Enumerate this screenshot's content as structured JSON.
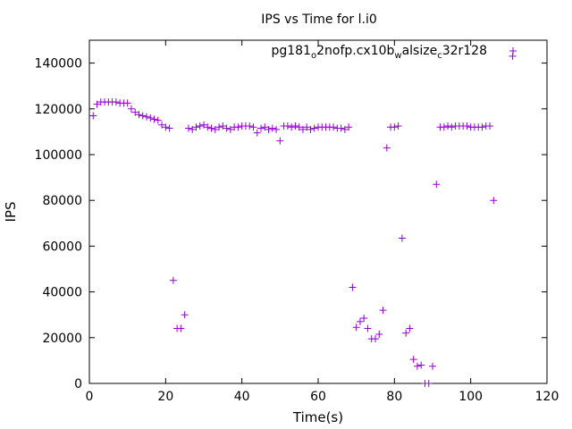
{
  "chart_data": {
    "type": "scatter",
    "title": "IPS vs Time for l.i0",
    "xlabel": "Time(s)",
    "ylabel": "IPS",
    "xlim": [
      0,
      120
    ],
    "ylim": [
      0,
      150000
    ],
    "xticks": [
      "0",
      "20",
      "40",
      "60",
      "80",
      "100",
      "120"
    ],
    "yticks": [
      "0",
      "20000",
      "40000",
      "60000",
      "80000",
      "100000",
      "120000",
      "140000"
    ],
    "legend": {
      "position": "top-right",
      "marker": "+",
      "label_parts": [
        {
          "t": "pg181",
          "sub": false
        },
        {
          "t": "o",
          "sub": true
        },
        {
          "t": "2nofp.cx10b",
          "sub": false
        },
        {
          "t": "w",
          "sub": true
        },
        {
          "t": "alsize",
          "sub": false
        },
        {
          "t": "c",
          "sub": true
        },
        {
          "t": "32r128",
          "sub": false
        }
      ]
    },
    "color": "#9400d3",
    "series": [
      {
        "name": "pg181_o2nofp.cx10b_walsize_c32r128",
        "x": [
          1,
          2,
          3,
          4,
          5,
          6,
          7,
          8,
          9,
          10,
          11,
          12,
          13,
          14,
          15,
          16,
          17,
          18,
          19,
          20,
          21,
          22,
          23,
          24,
          25,
          26,
          27,
          28,
          29,
          30,
          31,
          32,
          33,
          34,
          35,
          36,
          37,
          38,
          39,
          40,
          41,
          42,
          43,
          44,
          45,
          46,
          47,
          48,
          49,
          50,
          51,
          52,
          53,
          54,
          55,
          56,
          57,
          58,
          59,
          60,
          61,
          62,
          63,
          64,
          65,
          66,
          67,
          68,
          69,
          70,
          71,
          72,
          73,
          74,
          75,
          76,
          77,
          78,
          79,
          80,
          81,
          82,
          83,
          84,
          85,
          86,
          87,
          88,
          89,
          90,
          91,
          92,
          93,
          94,
          95,
          96,
          97,
          98,
          99,
          100,
          101,
          102,
          103,
          104,
          105,
          106,
          111
        ],
        "y": [
          117000,
          122000,
          123000,
          123000,
          123000,
          123000,
          123000,
          122500,
          122500,
          122500,
          120000,
          118500,
          117500,
          117000,
          116500,
          116000,
          115500,
          115000,
          113000,
          112000,
          111500,
          45000,
          24000,
          24000,
          30000,
          111500,
          111000,
          112000,
          112500,
          113000,
          112000,
          111500,
          111000,
          112000,
          112500,
          111500,
          111000,
          112000,
          112000,
          112500,
          112500,
          112500,
          112000,
          109500,
          111500,
          112000,
          111000,
          111500,
          111000,
          106000,
          112500,
          112500,
          112000,
          112500,
          112000,
          111000,
          112000,
          111000,
          111500,
          112000,
          112000,
          112000,
          112000,
          112000,
          111500,
          111500,
          111000,
          112000,
          42000,
          24500,
          27000,
          28500,
          24000,
          19500,
          19500,
          21500,
          32000,
          103000,
          112000,
          112000,
          112500,
          63500,
          22000,
          24000,
          10500,
          7500,
          8000,
          0,
          0,
          7500,
          87000,
          112000,
          112000,
          112500,
          112000,
          112500,
          112500,
          112500,
          112500,
          112000,
          112000,
          112000,
          112000,
          112500,
          112500,
          80000,
          143000
        ]
      }
    ]
  }
}
